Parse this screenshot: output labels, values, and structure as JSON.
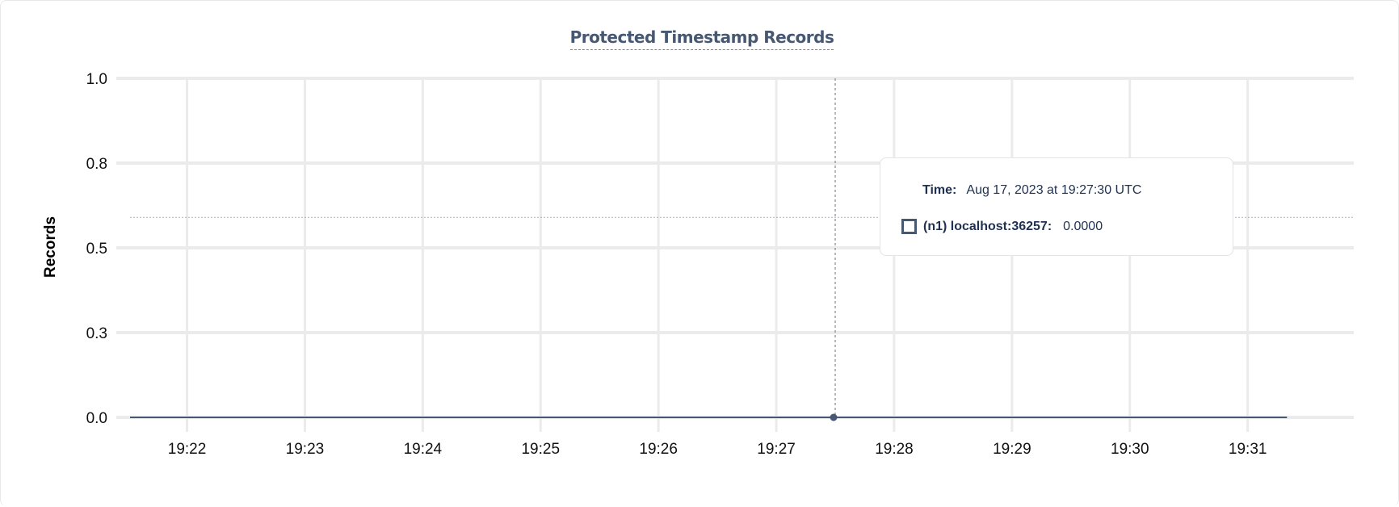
{
  "chart_data": {
    "type": "line",
    "title": "Protected Timestamp Records",
    "ylabel": "Records",
    "xlabel": "",
    "ylim": [
      0,
      1
    ],
    "yticks": [
      {
        "value": 0,
        "label": "0.0"
      },
      {
        "value": 0.25,
        "label": "0.3"
      },
      {
        "value": 0.5,
        "label": "0.5"
      },
      {
        "value": 0.75,
        "label": "0.8"
      },
      {
        "value": 1,
        "label": "1.0"
      }
    ],
    "xlim": [
      "19:21:24",
      "19:31:54"
    ],
    "xticks": [
      "19:22",
      "19:23",
      "19:24",
      "19:25",
      "19:26",
      "19:27",
      "19:28",
      "19:29",
      "19:30",
      "19:31"
    ],
    "grid": true,
    "series": [
      {
        "name": "(n1) localhost:36257",
        "color": "#475872",
        "x": [
          "19:21:31",
          "19:31:20"
        ],
        "y": [
          0,
          0
        ]
      }
    ],
    "hover": {
      "x": "19:27:30",
      "y": 0,
      "crosshair_y": 0.59
    }
  },
  "tooltip": {
    "time_label": "Time:",
    "time_value": "Aug 17, 2023 at 19:27:30 UTC",
    "series_label": "(n1) localhost:36257:",
    "series_value": "0.0000"
  }
}
